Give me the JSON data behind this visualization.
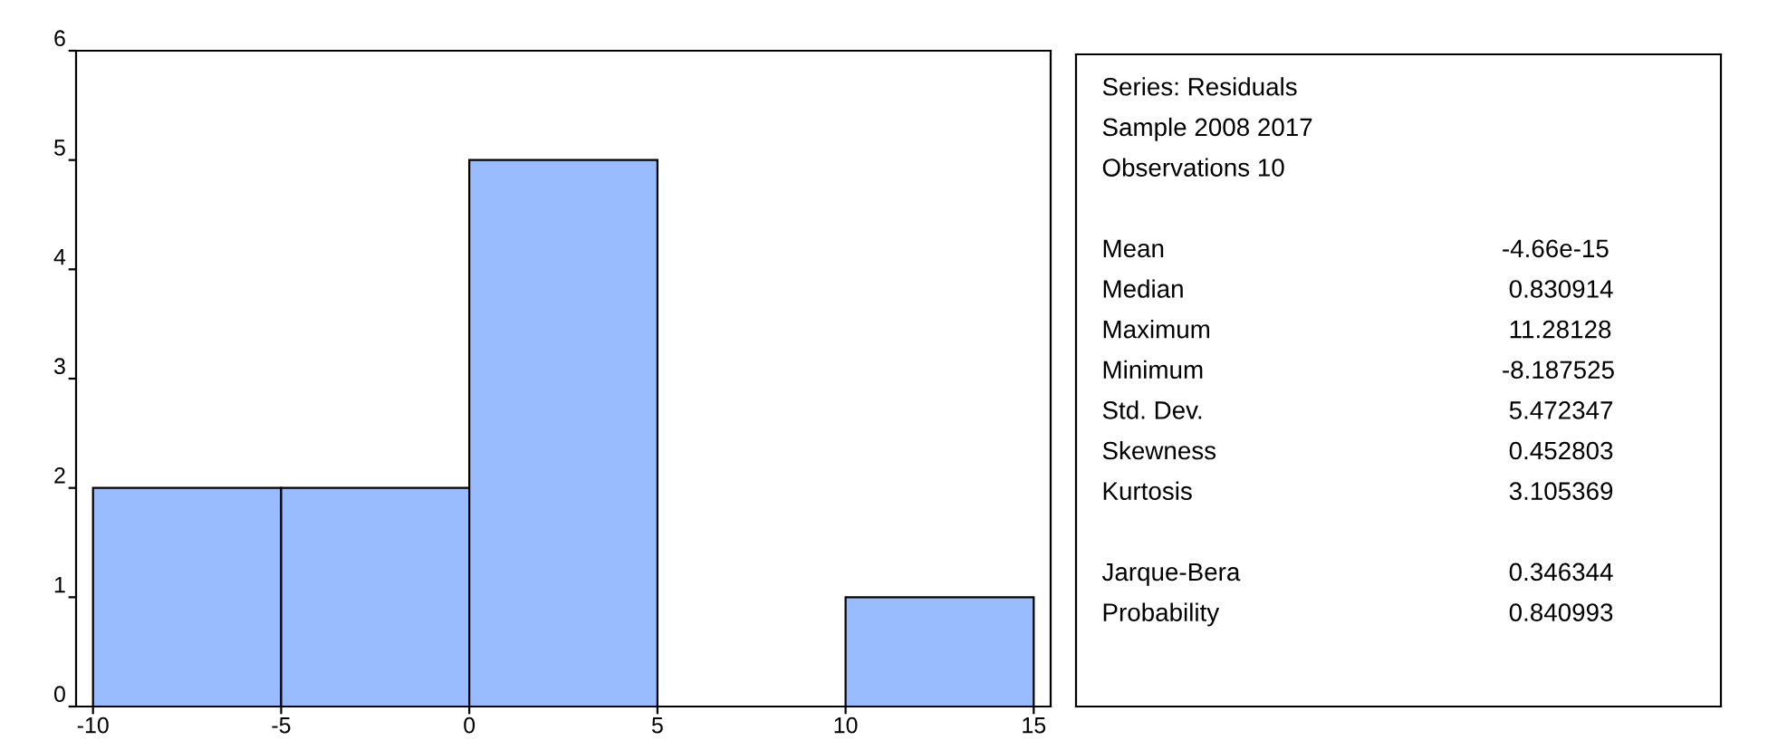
{
  "chart_data": [
    {
      "type": "histogram",
      "bins": [
        -10,
        -5,
        0,
        5,
        10,
        15
      ],
      "values": [
        2,
        2,
        5,
        0,
        1
      ],
      "color": "#99bbff",
      "xlim": [
        -10.45,
        15.45
      ],
      "xticks": [
        -10,
        -5,
        0,
        5,
        10,
        15
      ],
      "ylim": [
        0,
        6
      ],
      "yticks": [
        0,
        1,
        2,
        3,
        4,
        5,
        6
      ],
      "grid": false
    },
    {
      "type": "other",
      "annotations": [
        "Series: Residuals",
        "Sample 2008 2017",
        "Observations 10",
        "Mean",
        "-4.66e-15",
        "Median",
        " 0.830914",
        "Maximum",
        " 11.28128",
        "Minimum",
        "-8.187525",
        "Std. Dev.",
        " 5.472347",
        "Skewness",
        " 0.452803",
        "Kurtosis",
        " 3.105369",
        "Jarque-Bera",
        " 0.346344",
        "Probability",
        " 0.840993"
      ]
    }
  ]
}
